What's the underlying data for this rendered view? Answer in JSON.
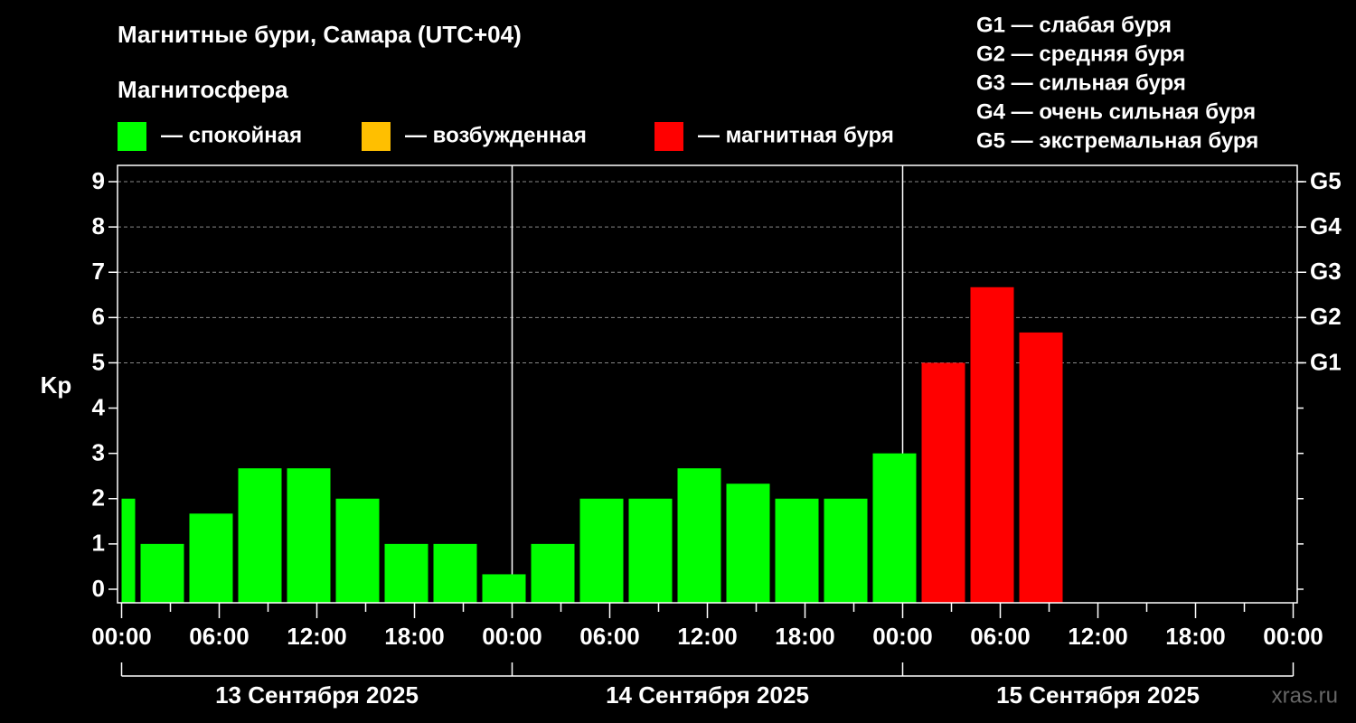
{
  "chart_data": {
    "type": "bar",
    "title": "Магнитные бури, Самара (UTC+04)",
    "subtitle": "Магнитосфера",
    "ylabel": "Kp",
    "legend": [
      {
        "label": "— спокойная",
        "color": "#00ff00"
      },
      {
        "label": "— возбужденная",
        "color": "#ffbf00"
      },
      {
        "label": "— магнитная буря",
        "color": "#ff0000"
      }
    ],
    "scale_legend": [
      "G1 — слабая буря",
      "G2 — средняя буря",
      "G3 — сильная буря",
      "G4 — очень сильная буря",
      "G5 — экстремальная буря"
    ],
    "x": [
      -0.5,
      2.5,
      5.5,
      8.5,
      11.5,
      14.5,
      17.5,
      20.5,
      23.5,
      26.5,
      29.5,
      32.5,
      35.5,
      38.5,
      41.5,
      44.5,
      47.5,
      50.5,
      53.5,
      56.5
    ],
    "values": [
      2,
      1,
      1.67,
      2.67,
      2.67,
      2,
      1,
      1,
      0.33,
      1,
      2,
      2,
      2.67,
      2.33,
      2,
      2,
      3,
      5,
      6.67,
      5.67
    ],
    "colors": [
      "#00ff00",
      "#00ff00",
      "#00ff00",
      "#00ff00",
      "#00ff00",
      "#00ff00",
      "#00ff00",
      "#00ff00",
      "#00ff00",
      "#00ff00",
      "#00ff00",
      "#00ff00",
      "#00ff00",
      "#00ff00",
      "#00ff00",
      "#00ff00",
      "#00ff00",
      "#ff0000",
      "#ff0000",
      "#ff0000"
    ],
    "bar_width": 3,
    "xlim": [
      -0.25,
      72.25
    ],
    "xticks": [
      {
        "value": 0,
        "label": "00:00"
      },
      {
        "value": 6,
        "label": "06:00"
      },
      {
        "value": 12,
        "label": "12:00"
      },
      {
        "value": 18,
        "label": "18:00"
      },
      {
        "value": 24,
        "label": "00:00"
      },
      {
        "value": 30,
        "label": "06:00"
      },
      {
        "value": 36,
        "label": "12:00"
      },
      {
        "value": 42,
        "label": "18:00"
      },
      {
        "value": 48,
        "label": "00:00"
      },
      {
        "value": 54,
        "label": "06:00"
      },
      {
        "value": 60,
        "label": "12:00"
      },
      {
        "value": 66,
        "label": "18:00"
      },
      {
        "value": 72,
        "label": "00:00"
      }
    ],
    "xminorticks": [
      3,
      9,
      15,
      21,
      27,
      33,
      39,
      45,
      51,
      57,
      63,
      69
    ],
    "day_edges": [
      0,
      24,
      48,
      72
    ],
    "day_labels": [
      "13 Сентября 2025",
      "14 Сентября 2025",
      "15 Сентября 2025"
    ],
    "ylim": [
      -0.3,
      9.36
    ],
    "yticks": [
      0,
      1,
      2,
      3,
      4,
      5,
      6,
      7,
      8,
      9
    ],
    "y2lim": [
      -0.3,
      9.36
    ],
    "y2ticks": [
      {
        "value": 5,
        "label": "G1"
      },
      {
        "value": 6,
        "label": "G2"
      },
      {
        "value": 7,
        "label": "G3"
      },
      {
        "value": 8,
        "label": "G4"
      },
      {
        "value": 9,
        "label": "G5"
      }
    ],
    "grid": true,
    "watermark": "xras.ru"
  }
}
